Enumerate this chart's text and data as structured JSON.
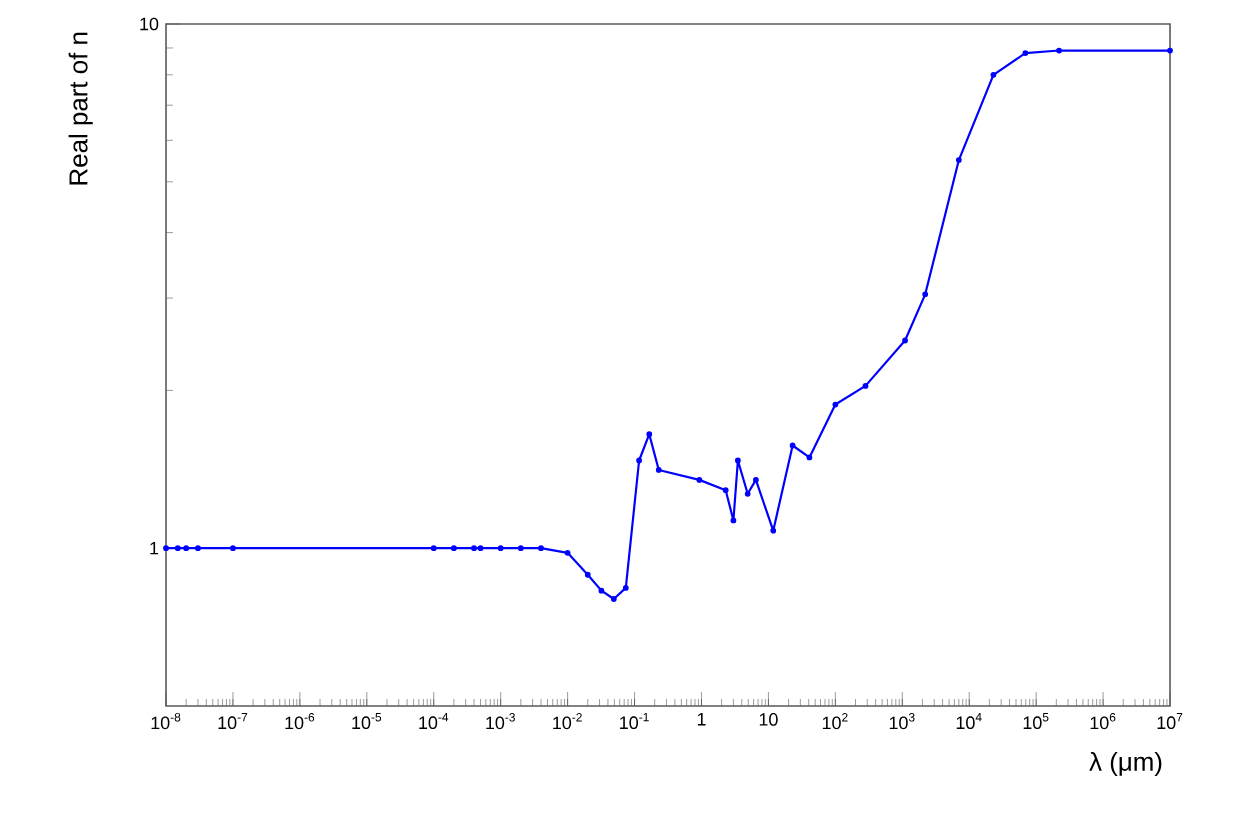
{
  "chart_data": {
    "type": "line",
    "xlabel": "λ (μm)",
    "ylabel": "Real part of n",
    "log": "xy",
    "xlim": [
      1e-08,
      10000000.0
    ],
    "ylim": [
      0.5,
      10
    ],
    "xticks": [
      {
        "value": 1e-08,
        "label": "10$^{-8}$"
      },
      {
        "value": 1e-07,
        "label": "10$^{-7}$"
      },
      {
        "value": 1e-06,
        "label": "10$^{-6}$"
      },
      {
        "value": 1e-05,
        "label": "10$^{-5}$"
      },
      {
        "value": 0.0001,
        "label": "10$^{-4}$"
      },
      {
        "value": 0.001,
        "label": "10$^{-3}$"
      },
      {
        "value": 0.01,
        "label": "10$^{-2}$"
      },
      {
        "value": 0.1,
        "label": "10$^{-1}$"
      },
      1,
      10,
      {
        "value": 100,
        "label": "10$^{2}$"
      },
      {
        "value": 1000,
        "label": "10$^{3}$"
      },
      {
        "value": 10000,
        "label": "10$^{4}$"
      },
      {
        "value": 100000,
        "label": "10$^{5}$"
      },
      {
        "value": 1000000,
        "label": "10$^{6}$"
      },
      {
        "value": 10000000,
        "label": "10$^{7}$"
      }
    ],
    "yticks": [
      1,
      10
    ],
    "marker": "circle",
    "line_style": "solid",
    "series": [
      {
        "color": "#0000ff",
        "x": [
          1e-08,
          1.5e-08,
          2e-08,
          3e-08,
          1e-07,
          0.0001,
          0.0002,
          0.0004,
          0.0005,
          0.001,
          0.002,
          0.004,
          0.01,
          0.02,
          0.032,
          0.049,
          0.074,
          0.117,
          0.166,
          0.23,
          0.93,
          2.3,
          3.0,
          3.5,
          4.9,
          6.5,
          11.8,
          23,
          41,
          100,
          282,
          1100,
          2200,
          7000,
          23000,
          69000,
          220000,
          10000000.0
        ],
        "values": [
          1,
          1,
          1,
          1,
          1,
          1,
          1,
          1,
          1,
          1,
          1,
          1,
          0.98,
          0.89,
          0.83,
          0.8,
          0.84,
          1.47,
          1.65,
          1.41,
          1.35,
          1.29,
          1.13,
          1.47,
          1.27,
          1.35,
          1.08,
          1.57,
          1.49,
          1.88,
          2.04,
          2.49,
          3.05,
          5.5,
          8.0,
          8.8,
          8.9,
          8.9
        ]
      }
    ]
  }
}
